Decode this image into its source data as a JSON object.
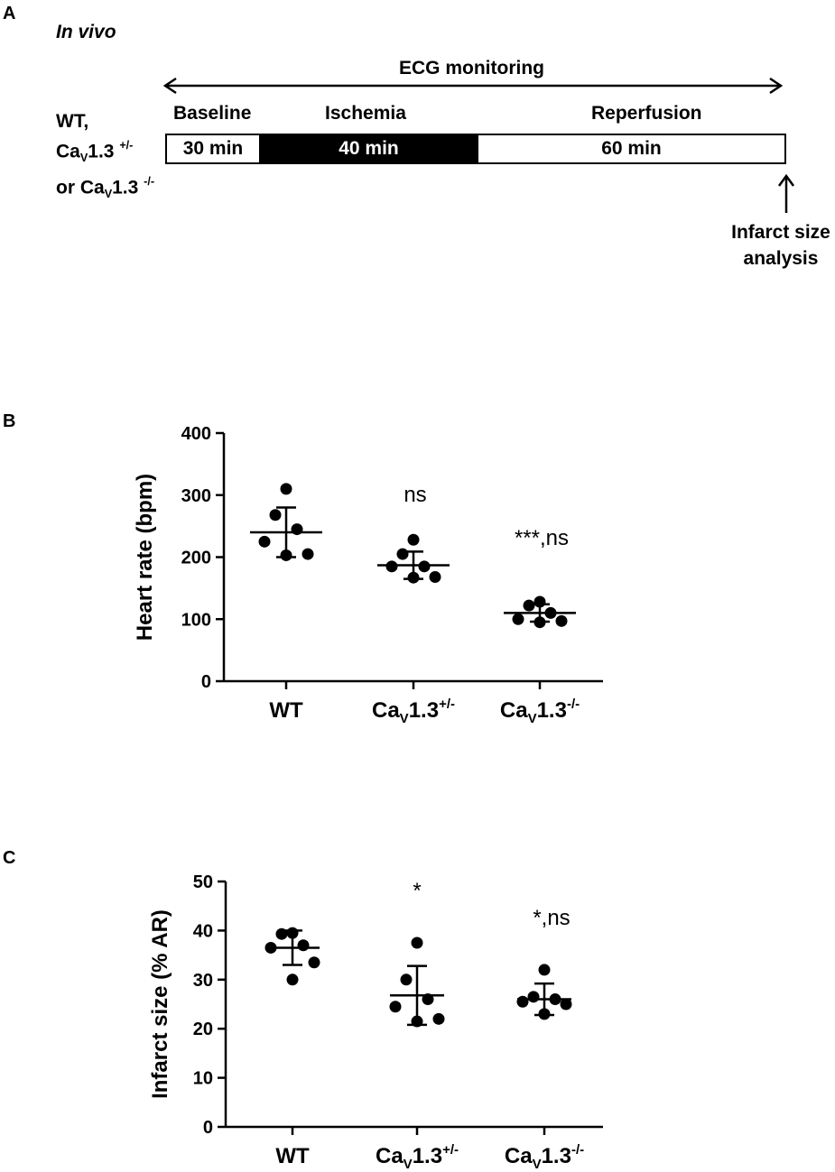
{
  "panel_a": {
    "letter": "A",
    "subtitle": "In vivo",
    "monitoring_label": "ECG monitoring",
    "groups": {
      "line1": "WT,",
      "line2_main": "Ca",
      "line2_sub": "V",
      "line2_rest": "1.3",
      "line2_sup": "+/-",
      "line3_main": "or Ca",
      "line3_sub": "V",
      "line3_rest": "1.3",
      "line3_sup": "-/-"
    },
    "phases": [
      {
        "name": "Baseline",
        "duration": "30 min",
        "minutes": 30
      },
      {
        "name": "Ischemia",
        "duration": "40 min",
        "minutes": 40
      },
      {
        "name": "Reperfusion",
        "duration": "60 min",
        "minutes": 60
      }
    ],
    "endpoint_line1": "Infarct size",
    "endpoint_line2": "analysis"
  },
  "chart_data": [
    {
      "type": "scatter",
      "panel": "B",
      "ylabel": "Heart rate (bpm)",
      "ylim": [
        0,
        400
      ],
      "yticks": [
        0,
        100,
        200,
        300,
        400
      ],
      "categories": [
        {
          "main": "WT",
          "sub": "",
          "rest": "",
          "sup": ""
        },
        {
          "main": "Ca",
          "sub": "V",
          "rest": "1.3",
          "sup": "+/-"
        },
        {
          "main": "Ca",
          "sub": "V",
          "rest": "1.3",
          "sup": "-/-"
        }
      ],
      "groups": [
        {
          "points": [
            310,
            268,
            245,
            225,
            205,
            203
          ],
          "mean": 240,
          "sd_low": 200,
          "sd_high": 280,
          "annotation": ""
        },
        {
          "points": [
            228,
            205,
            185,
            185,
            168,
            167
          ],
          "mean": 187,
          "sd_low": 165,
          "sd_high": 209,
          "annotation": "ns"
        },
        {
          "points": [
            128,
            122,
            110,
            100,
            97,
            95
          ],
          "mean": 110,
          "sd_low": 96,
          "sd_high": 124,
          "annotation": "***,ns"
        }
      ]
    },
    {
      "type": "scatter",
      "panel": "C",
      "ylabel": "Infarct size  (% AR)",
      "ylim": [
        0,
        50
      ],
      "yticks": [
        0,
        10,
        20,
        30,
        40,
        50
      ],
      "categories": [
        {
          "main": "WT",
          "sub": "",
          "rest": "",
          "sup": ""
        },
        {
          "main": "Ca",
          "sub": "V",
          "rest": "1.3",
          "sup": "+/-"
        },
        {
          "main": "Ca",
          "sub": "V",
          "rest": "1.3",
          "sup": "-/-"
        }
      ],
      "groups": [
        {
          "points": [
            39.5,
            39.3,
            37.0,
            36.5,
            33.5,
            30.0
          ],
          "mean": 36.5,
          "sd_low": 33.0,
          "sd_high": 40.0,
          "annotation": ""
        },
        {
          "points": [
            37.5,
            30.0,
            26.0,
            24.5,
            22.0,
            21.5
          ],
          "mean": 26.8,
          "sd_low": 20.8,
          "sd_high": 32.8,
          "annotation": "*"
        },
        {
          "points": [
            32.0,
            26.5,
            26.0,
            25.5,
            25.0,
            23.0
          ],
          "mean": 26.0,
          "sd_low": 22.8,
          "sd_high": 29.2,
          "annotation": "*,ns"
        }
      ]
    }
  ]
}
